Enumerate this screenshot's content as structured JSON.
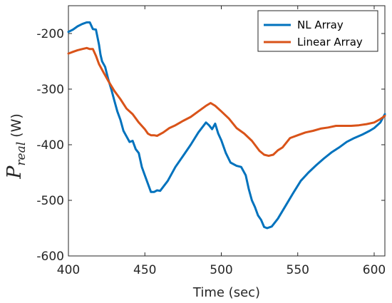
{
  "chart_data": {
    "type": "line",
    "title": "",
    "xlabel": "Time (sec)",
    "ylabel": {
      "symbol": "P",
      "subscript": "real",
      "unit": "(W)"
    },
    "xlim": [
      400,
      607
    ],
    "ylim": [
      -600,
      -150
    ],
    "xticks": [
      "400",
      "450",
      "500",
      "550",
      "600"
    ],
    "yticks": [
      "-200",
      "-300",
      "-400",
      "-500",
      "-600"
    ],
    "grid": false,
    "legend_position": "top-right",
    "series": [
      {
        "name": "NL Array",
        "color": "#0072BD",
        "x": [
          400,
          403,
          406,
          409,
          412,
          414,
          416,
          418,
          420,
          421,
          422,
          424,
          426,
          428,
          430,
          432,
          434,
          436,
          438,
          440,
          442,
          444,
          446,
          448,
          450,
          452,
          454,
          456,
          458,
          460,
          465,
          470,
          475,
          480,
          485,
          490,
          492,
          494,
          496,
          498,
          500,
          503,
          506,
          510,
          513,
          516,
          518,
          520,
          522,
          524,
          526,
          528,
          530,
          533,
          537,
          542,
          547,
          552,
          557,
          562,
          567,
          572,
          577,
          582,
          587,
          592,
          597,
          600,
          604,
          607
        ],
        "y": [
          -197,
          -193,
          -187,
          -183,
          -180,
          -180,
          -192,
          -193,
          -220,
          -238,
          -250,
          -260,
          -282,
          -300,
          -320,
          -340,
          -355,
          -375,
          -385,
          -395,
          -393,
          -408,
          -415,
          -440,
          -455,
          -470,
          -485,
          -485,
          -482,
          -483,
          -465,
          -440,
          -420,
          -400,
          -378,
          -360,
          -365,
          -372,
          -362,
          -380,
          -392,
          -415,
          -432,
          -438,
          -440,
          -455,
          -480,
          -500,
          -512,
          -527,
          -535,
          -548,
          -550,
          -547,
          -533,
          -510,
          -487,
          -465,
          -450,
          -437,
          -425,
          -414,
          -405,
          -395,
          -388,
          -382,
          -375,
          -370,
          -360,
          -345
        ]
      },
      {
        "name": "Linear Array",
        "color": "#D95319",
        "x": [
          400,
          403,
          406,
          409,
          412,
          414,
          416,
          418,
          420,
          423,
          426,
          430,
          434,
          438,
          442,
          446,
          450,
          452,
          454,
          456,
          458,
          462,
          466,
          470,
          475,
          480,
          485,
          490,
          493,
          496,
          500,
          505,
          510,
          515,
          520,
          525,
          528,
          531,
          534,
          537,
          540,
          545,
          550,
          555,
          560,
          565,
          570,
          575,
          580,
          585,
          590,
          595,
          600,
          604,
          607
        ],
        "y": [
          -236,
          -233,
          -230,
          -228,
          -226,
          -228,
          -228,
          -240,
          -255,
          -270,
          -285,
          -303,
          -318,
          -335,
          -345,
          -360,
          -372,
          -380,
          -383,
          -383,
          -384,
          -378,
          -370,
          -365,
          -357,
          -350,
          -340,
          -330,
          -325,
          -330,
          -340,
          -353,
          -370,
          -380,
          -393,
          -411,
          -418,
          -420,
          -418,
          -410,
          -405,
          -388,
          -383,
          -378,
          -375,
          -371,
          -369,
          -366,
          -366,
          -366,
          -365,
          -363,
          -360,
          -354,
          -348
        ]
      }
    ]
  }
}
